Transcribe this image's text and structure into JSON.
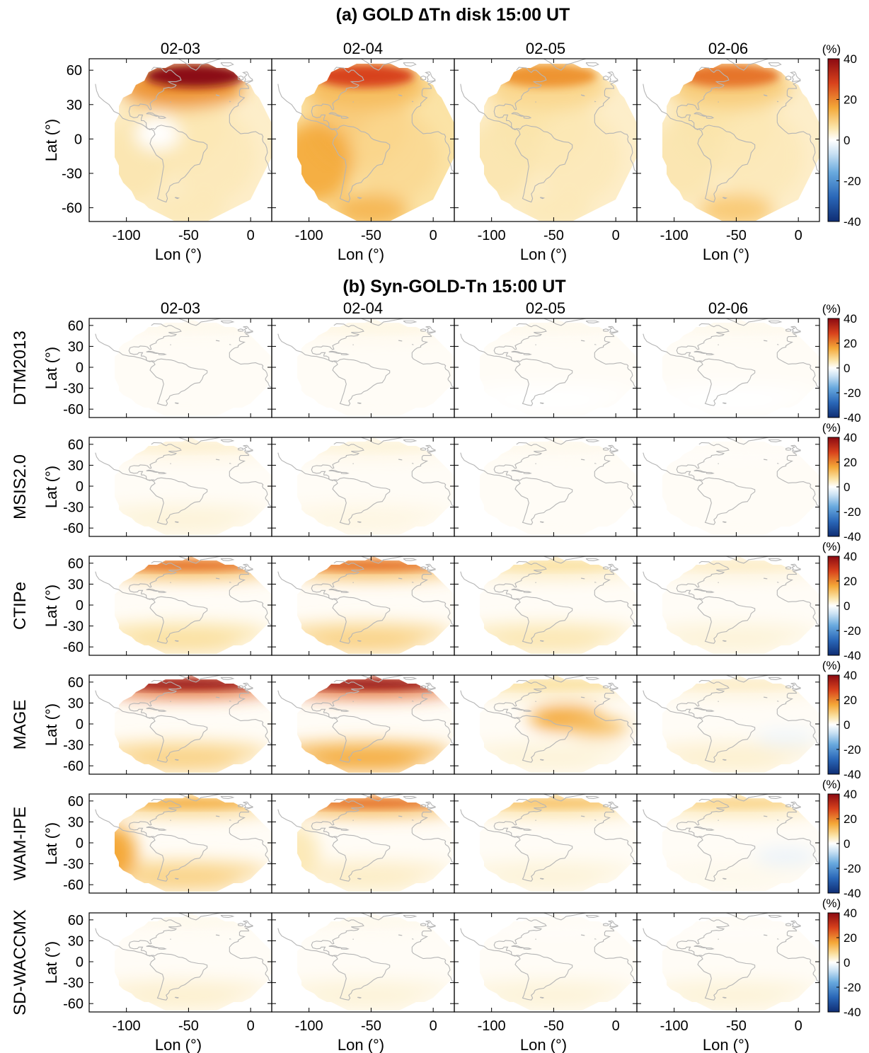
{
  "chart_data": [
    {
      "type": "heatmap",
      "title": "(a) GOLD ∆Tn disk 15:00 UT",
      "panels": [
        {
          "date": "02-03",
          "northeast_max_pct": 40,
          "typical_pct": 8,
          "south_pct": 8
        },
        {
          "date": "02-04",
          "northeast_max_pct": 30,
          "typical_pct": 12,
          "south_pct": 18
        },
        {
          "date": "02-05",
          "northeast_max_pct": 22,
          "typical_pct": 8,
          "south_pct": 8
        },
        {
          "date": "02-06",
          "northeast_max_pct": 25,
          "typical_pct": 8,
          "south_pct": 15
        }
      ],
      "xlabel": "Lon (°)",
      "ylabel": "Lat (°)",
      "xticks": [
        -100,
        -50,
        0
      ],
      "yticks": [
        60,
        30,
        0,
        -30,
        -60
      ],
      "colorbar": {
        "unit": "(%)",
        "range": [
          -40,
          40
        ],
        "ticks": [
          40,
          20,
          0,
          -20,
          -40
        ]
      }
    },
    {
      "type": "heatmap",
      "title": "(b) Syn-GOLD-Tn  15:00 UT",
      "dates": [
        "02-03",
        "02-04",
        "02-05",
        "02-06"
      ],
      "xlabel": "Lon (°)",
      "ylabel": "Lat (°)",
      "xticks": [
        -100,
        -50,
        0
      ],
      "yticks": [
        60,
        30,
        0,
        -30,
        -60
      ],
      "colorbar": {
        "unit": "(%)",
        "range": [
          -40,
          40
        ],
        "ticks": [
          40,
          20,
          0,
          -20,
          -40
        ]
      },
      "models": [
        {
          "name": "DTM2013",
          "panels": [
            {
              "north_pct": 2,
              "south_pct": 1
            },
            {
              "north_pct": 3,
              "south_pct": 1
            },
            {
              "north_pct": 2,
              "south_pct": 0
            },
            {
              "north_pct": 2,
              "south_pct": 0
            }
          ]
        },
        {
          "name": "MSIS2.0",
          "panels": [
            {
              "north_pct": 5,
              "south_pct": 4
            },
            {
              "north_pct": 4,
              "south_pct": 3
            },
            {
              "north_pct": 2,
              "south_pct": 1
            },
            {
              "north_pct": 1,
              "south_pct": 1
            }
          ]
        },
        {
          "name": "CTIPe",
          "panels": [
            {
              "north_pct": 25,
              "south_pct": 10
            },
            {
              "north_pct": 25,
              "south_pct": 12
            },
            {
              "north_pct": 10,
              "south_pct": 8
            },
            {
              "north_pct": 6,
              "south_pct": 4
            }
          ]
        },
        {
          "name": "MAGE",
          "panels": [
            {
              "north_pct": 38,
              "south_pct": 12
            },
            {
              "north_pct": 38,
              "south_pct": 18
            },
            {
              "north_pct": 10,
              "equator_band_pct": 20,
              "south_pct": 4
            },
            {
              "north_pct": 6,
              "south_pct": 5,
              "min_pct": -3
            }
          ]
        },
        {
          "name": "WAM-IPE",
          "panels": [
            {
              "north_pct": 18,
              "west_pct": 20,
              "south_pct": 12
            },
            {
              "north_pct": 25,
              "west_pct": 8,
              "south_pct": 6
            },
            {
              "north_pct": 15,
              "south_pct": 4
            },
            {
              "north_pct": 12,
              "south_pct": 2,
              "min_pct": -4
            }
          ]
        },
        {
          "name": "SD-WACCMX",
          "panels": [
            {
              "north_pct": 2,
              "south_pct": 5
            },
            {
              "north_pct": 2,
              "south_pct": 4
            },
            {
              "north_pct": 1,
              "south_pct": 4
            },
            {
              "north_pct": 1,
              "south_pct": 4
            }
          ]
        }
      ]
    }
  ]
}
